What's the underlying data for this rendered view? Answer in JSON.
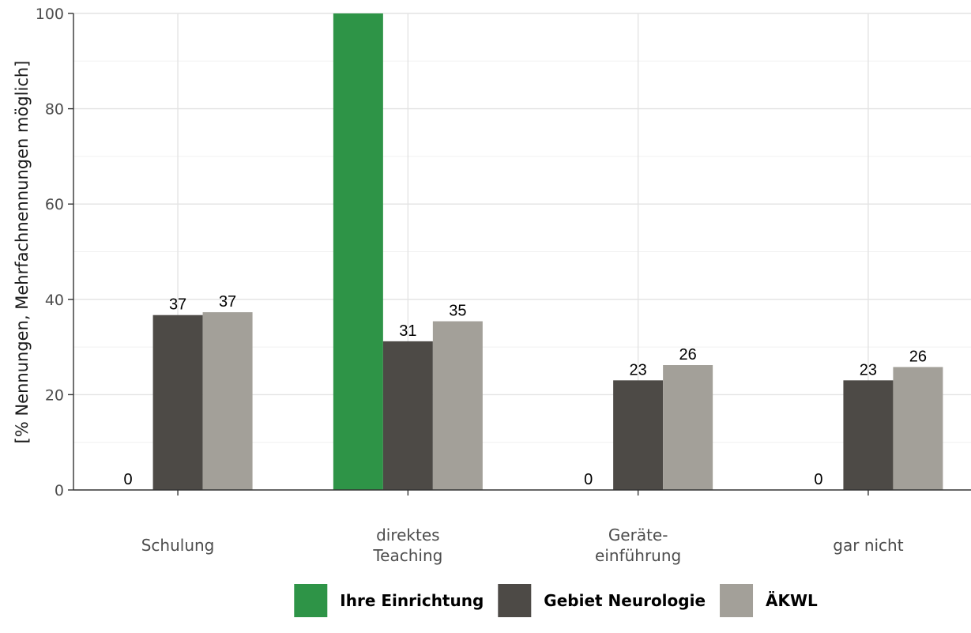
{
  "chart_data": {
    "type": "bar",
    "categories": [
      [
        "Schulung"
      ],
      [
        "direktes",
        "Teaching"
      ],
      [
        "Geräte-",
        "einführung"
      ],
      [
        "gar nicht"
      ]
    ],
    "series": [
      {
        "name": "Ihre Einrichtung",
        "values": [
          0,
          100,
          0,
          0
        ],
        "labels": [
          "0",
          "",
          "0",
          "0"
        ],
        "color": "#2e9447"
      },
      {
        "name": "Gebiet Neurologie",
        "values": [
          36.7,
          31.2,
          23,
          23
        ],
        "labels": [
          "37",
          "31",
          "23",
          "23"
        ],
        "color": "#4d4a46"
      },
      {
        "name": "ÄKWL",
        "values": [
          37.3,
          35.4,
          26.2,
          25.8
        ],
        "labels": [
          "37",
          "35",
          "26",
          "26"
        ],
        "color": "#a3a099"
      }
    ],
    "ylabel": "[% Nennungen, Mehrfachnennungen möglich]",
    "ylim": [
      0,
      100
    ],
    "yticks": [
      "0",
      "20",
      "40",
      "60",
      "80",
      "100"
    ],
    "grid": true,
    "legend_position": "bottom"
  }
}
